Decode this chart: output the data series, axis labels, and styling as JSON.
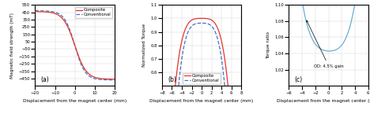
{
  "plot_a": {
    "title": "(a)",
    "xlabel": "Displacement from the magnet center (mm)",
    "ylabel": "Magnetic field strength (mT)",
    "xlim": [
      -20,
      20
    ],
    "ylim": [
      -550,
      550
    ],
    "yticks": [
      -450,
      -350,
      -250,
      -150,
      -50,
      50,
      150,
      250,
      350,
      450,
      550
    ],
    "xticks": [
      -20,
      -10,
      0,
      10,
      20
    ],
    "composite_color": "#e8342a",
    "conventional_color": "#4472c4",
    "composite_lw": 1.0,
    "conventional_lw": 1.0
  },
  "plot_b": {
    "title": "(b)",
    "xlabel": "Displacement from the magnet center (mm)",
    "ylabel": "Normalized Torque",
    "xlim": [
      -8,
      8
    ],
    "ylim": [
      0.5,
      1.1
    ],
    "yticks": [
      0.6,
      0.7,
      0.8,
      0.9,
      1.0,
      1.1
    ],
    "xticks": [
      -8,
      -6,
      -4,
      -2,
      0,
      2,
      4,
      6,
      8
    ],
    "composite_color": "#e8342a",
    "conventional_color": "#4472c4"
  },
  "plot_c": {
    "title": "(c)",
    "xlabel": "Displacement from the magnet center (mm)",
    "ylabel": "Torque ratio",
    "xlim": [
      -6,
      6
    ],
    "ylim": [
      1.0,
      1.1
    ],
    "yticks": [
      1.02,
      1.04,
      1.06,
      1.08,
      1.1
    ],
    "xticks": [
      -6,
      -4,
      -2,
      0,
      2,
      4,
      6
    ],
    "curve_color": "#6baed6"
  }
}
